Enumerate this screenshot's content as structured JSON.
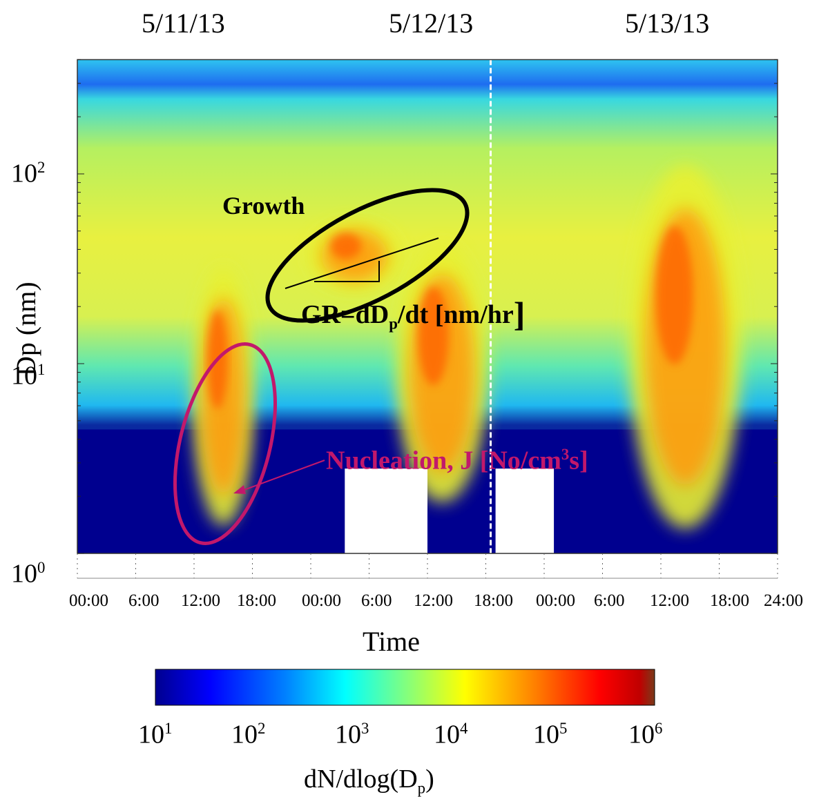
{
  "chart_data": {
    "type": "heatmap",
    "dates": [
      "5/11/13",
      "5/12/13",
      "5/13/13"
    ],
    "x_ticks": [
      [
        "00:00",
        "6:00",
        "12:00",
        "18:00"
      ],
      [
        "00:00",
        "6:00",
        "12:00",
        "18:00"
      ],
      [
        "00:00",
        "6:00",
        "12:00",
        "18:00",
        "24:00"
      ]
    ],
    "xlabel": "Time",
    "ylabel": "Dp (nm)",
    "y_scale": "log",
    "ylim": [
      1,
      400
    ],
    "y_ticks": [
      {
        "base": "10",
        "exp": "0"
      },
      {
        "base": "10",
        "exp": "1"
      },
      {
        "base": "10",
        "exp": "2"
      }
    ],
    "colorbar": {
      "label_main": "dN/dlog(D",
      "label_sub": "p",
      "label_end": ")",
      "scale": "log",
      "range": [
        10,
        1000000
      ],
      "ticks": [
        {
          "base": "10",
          "exp": "1"
        },
        {
          "base": "10",
          "exp": "2"
        },
        {
          "base": "10",
          "exp": "3"
        },
        {
          "base": "10",
          "exp": "4"
        },
        {
          "base": "10",
          "exp": "5"
        },
        {
          "base": "10",
          "exp": "6"
        }
      ],
      "colors": [
        "#00008f",
        "#0000ff",
        "#0080ff",
        "#00ffff",
        "#80ff80",
        "#ffff00",
        "#ff8000",
        "#ff0000",
        "#800000"
      ]
    },
    "annotations": {
      "growth": "Growth",
      "gr_formula": {
        "a": "GR=dD",
        "sub": "p",
        "b": "/dt [nm/hr",
        "bracket": "]"
      },
      "nucleation": {
        "a": "Nucleation, J [No/cm",
        "sup": "3",
        "b": "s]"
      }
    },
    "events": [
      {
        "type": "nucleation",
        "day": "5/11/13",
        "start_hour": 12,
        "end_hour": 18,
        "dp_start_nm": 1.5,
        "dp_end_nm": 30
      },
      {
        "type": "growth",
        "day": "5/12/13",
        "start_hour": 0,
        "end_hour": 9,
        "dp_start_nm": 25,
        "dp_end_nm": 55
      },
      {
        "type": "nucleation",
        "day": "5/12/13",
        "start_hour": 9,
        "end_hour": 18,
        "dp_start_nm": 2,
        "dp_end_nm": 40
      },
      {
        "type": "nucleation",
        "day": "5/13/13",
        "start_hour": 9,
        "end_hour": 20,
        "dp_start_nm": 1.5,
        "dp_end_nm": 100
      }
    ],
    "missing_data": [
      {
        "day": "5/12/13",
        "start_hour": 3.5,
        "end_hour": 12,
        "below_dp_nm": 2.8
      },
      {
        "day": "5/12/13",
        "start_hour": 19,
        "end_hour": 24,
        "below_dp_nm": 2.8
      },
      {
        "day": "5/13/13",
        "start_hour": 0,
        "end_hour": 1,
        "below_dp_nm": 2.8
      }
    ],
    "colors": {
      "nucleation_ellipse": "#c2186b",
      "growth_ellipse": "#000000"
    }
  }
}
